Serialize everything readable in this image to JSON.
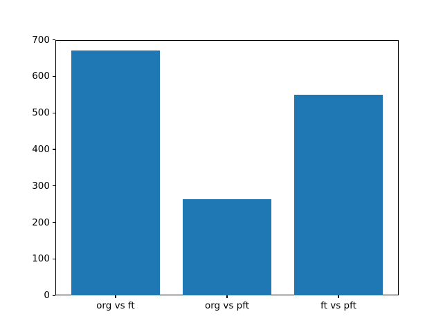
{
  "chart_data": {
    "type": "bar",
    "categories": [
      "org vs ft",
      "org vs pft",
      "ft vs pft"
    ],
    "values": [
      670,
      264,
      550
    ],
    "title": "",
    "xlabel": "",
    "ylabel": "",
    "ylim": [
      0,
      700
    ],
    "yticks": [
      0,
      100,
      200,
      300,
      400,
      500,
      600,
      700
    ],
    "bar_color": "#1f77b4",
    "axis_color": "#000000",
    "background_color": "#ffffff",
    "bar_width_fraction": 0.8,
    "x_margin": 0.05,
    "grid": false,
    "legend": null
  }
}
